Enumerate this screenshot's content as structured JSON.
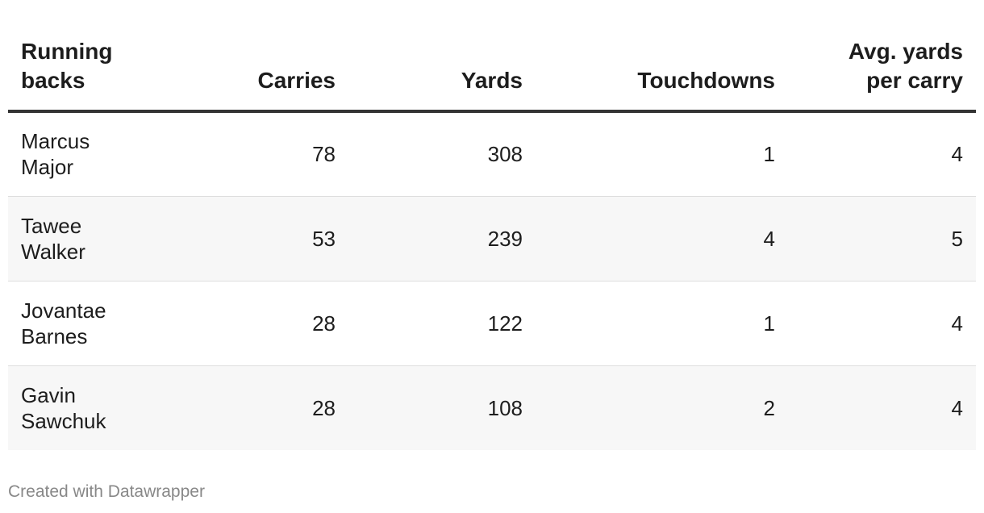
{
  "chart_data": {
    "type": "table",
    "columns": [
      "Running backs",
      "Carries",
      "Yards",
      "Touchdowns",
      "Avg. yards per carry"
    ],
    "header": {
      "name": [
        "Running",
        "backs"
      ],
      "carries": "Carries",
      "yards": "Yards",
      "touchdowns": "Touchdowns",
      "avg": [
        "Avg. yards",
        "per carry"
      ]
    },
    "rows": [
      {
        "first": "Marcus",
        "last": "Major",
        "carries": "78",
        "yards": "308",
        "touchdowns": "1",
        "avg": "4"
      },
      {
        "first": "Tawee",
        "last": "Walker",
        "carries": "53",
        "yards": "239",
        "touchdowns": "4",
        "avg": "5"
      },
      {
        "first": "Jovantae",
        "last": "Barnes",
        "carries": "28",
        "yards": "122",
        "touchdowns": "1",
        "avg": "4"
      },
      {
        "first": "Gavin",
        "last": "Sawchuk",
        "carries": "28",
        "yards": "108",
        "touchdowns": "2",
        "avg": "4"
      }
    ],
    "row_shading": "alternating",
    "shade_color": "#f7f7f7",
    "header_rule_color": "#333333"
  },
  "footer": {
    "credit": "Created with Datawrapper"
  }
}
